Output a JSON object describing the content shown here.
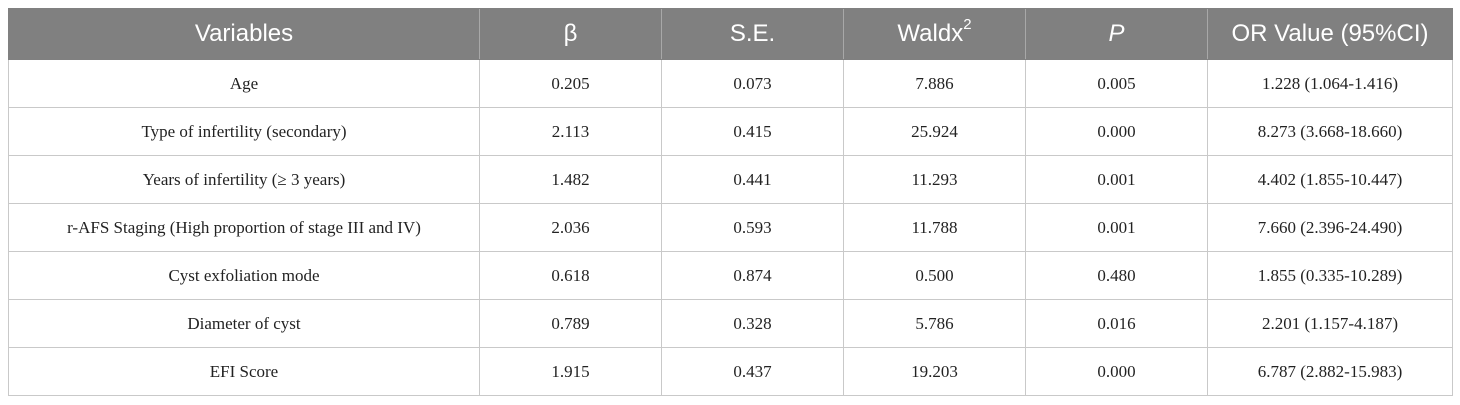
{
  "table": {
    "headers": {
      "variables": "Variables",
      "beta": "β",
      "se": "S.E.",
      "wald": "Waldx",
      "wald_sup": "2",
      "p": "P",
      "or": "OR Value (95%CI)"
    },
    "rows": [
      {
        "variable": "Age",
        "beta": "0.205",
        "se": "0.073",
        "wald": "7.886",
        "p": "0.005",
        "or": "1.228 (1.064-1.416)"
      },
      {
        "variable": "Type of infertility (secondary)",
        "beta": "2.113",
        "se": "0.415",
        "wald": "25.924",
        "p": "0.000",
        "or": "8.273 (3.668-18.660)"
      },
      {
        "variable": "Years of infertility (≥ 3 years)",
        "beta": "1.482",
        "se": "0.441",
        "wald": "11.293",
        "p": "0.001",
        "or": "4.402 (1.855-10.447)"
      },
      {
        "variable": "r-AFS Staging (High proportion of stage III and IV)",
        "beta": "2.036",
        "se": "0.593",
        "wald": "11.788",
        "p": "0.001",
        "or": "7.660 (2.396-24.490)"
      },
      {
        "variable": "Cyst exfoliation mode",
        "beta": "0.618",
        "se": "0.874",
        "wald": "0.500",
        "p": "0.480",
        "or": "1.855 (0.335-10.289)"
      },
      {
        "variable": "Diameter of cyst",
        "beta": "0.789",
        "se": "0.328",
        "wald": "5.786",
        "p": "0.016",
        "or": "2.201 (1.157-4.187)"
      },
      {
        "variable": "EFI Score",
        "beta": "1.915",
        "se": "0.437",
        "wald": "19.203",
        "p": "0.000",
        "or": "6.787 (2.882-15.983)"
      }
    ]
  }
}
